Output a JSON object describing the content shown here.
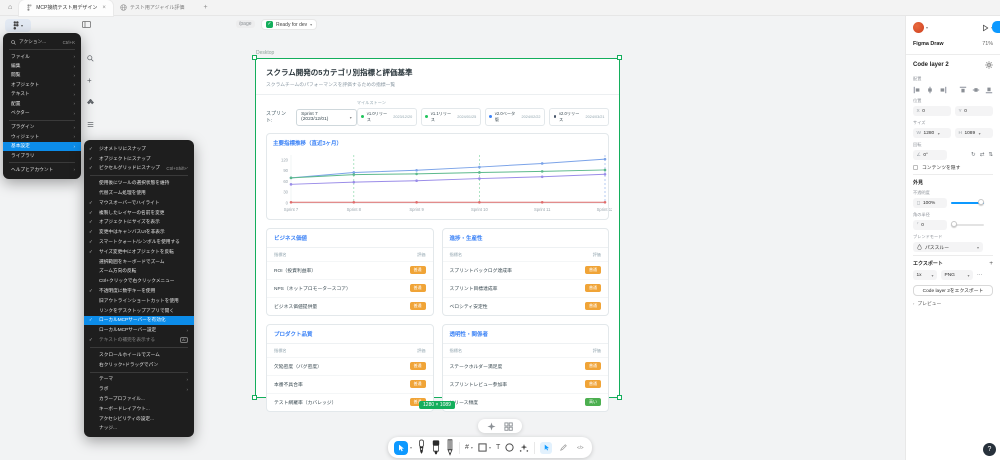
{
  "icons": {
    "chevron-down": "▾",
    "chevron-right": "›",
    "check": "✓",
    "close": "×",
    "plus": "+",
    "home": "⌂",
    "more": "⋯",
    "question": "?",
    "text-tool": "T",
    "frame-tool": "#",
    "dev-mode": "</>",
    "rotate": "↻",
    "flip-h": "⇄",
    "flip-v": "⇅",
    "angle": "∠"
  },
  "tabbar": {
    "tabs": [
      {
        "label": "MCP接続テスト用デザイン",
        "active": true
      },
      {
        "label": "テスト用アジャイル評価",
        "active": false
      }
    ]
  },
  "topbar": {
    "breadcrumb": "/page",
    "status": "Ready for dev"
  },
  "main_menu": {
    "action_item": {
      "label": "アクション...",
      "shortcut": "Ctrl+K"
    },
    "items": [
      {
        "label": "ファイル",
        "arrow": true
      },
      {
        "label": "編集",
        "arrow": true
      },
      {
        "label": "閲覧",
        "arrow": true
      },
      {
        "label": "オブジェクト",
        "arrow": true
      },
      {
        "label": "テキスト",
        "arrow": true
      },
      {
        "label": "配置",
        "arrow": true
      },
      {
        "label": "ベクター",
        "arrow": true,
        "divider_after": true
      },
      {
        "label": "プラグイン",
        "arrow": true
      },
      {
        "label": "ウィジェット",
        "arrow": true
      },
      {
        "label": "基本設定",
        "arrow": true,
        "highlighted": true
      },
      {
        "label": "ライブラリ",
        "divider_after": true
      },
      {
        "label": "ヘルプとアカウント",
        "arrow": true
      }
    ]
  },
  "settings_submenu": {
    "items": [
      {
        "label": "ジオメトリにスナップ",
        "checked": true
      },
      {
        "label": "オブジェクトにスナップ",
        "checked": true
      },
      {
        "label": "ピクセルグリッドにスナップ",
        "checked": true,
        "shortcut": "Ctrl+Shift+'",
        "divider_after": true
      },
      {
        "label": "使用後にツールの選択状態を維持"
      },
      {
        "label": "代替ズーム処理を使用"
      },
      {
        "label": "マウスオーバーでハイライト",
        "checked": true
      },
      {
        "label": "複製したレイヤーの名前を変更",
        "checked": true
      },
      {
        "label": "オブジェクトにサイズを表示",
        "checked": true
      },
      {
        "label": "変更中はキャンバスUIを非表示",
        "checked": true
      },
      {
        "label": "スマートクォート/シンボルを使用する",
        "checked": true
      },
      {
        "label": "サイズ変更中にオブジェクトを反転",
        "checked": true
      },
      {
        "label": "選択範囲をキーボードでズーム"
      },
      {
        "label": "ズーム方向の反転"
      },
      {
        "label": "Ctrl+クリックで右クリックメニュー"
      },
      {
        "label": "不透明度に数字キーを使用",
        "checked": true
      },
      {
        "label": "旧アウトラインショートカットを使用"
      },
      {
        "label": "リンクをデスクトップアプリで開く"
      },
      {
        "label": "ローカルMCPサーバーを有効化",
        "checked": true,
        "highlighted": true
      },
      {
        "label": "ローカルMCPサーバー設定",
        "arrow": true
      },
      {
        "label": "テキストの補完を表示する",
        "checked": true,
        "disabled": true,
        "badge": "AI",
        "divider_after": true
      },
      {
        "label": "スクロールホイールでズーム"
      },
      {
        "label": "右クリック+ドラッグでパン",
        "divider_after": true
      },
      {
        "label": "テーマ",
        "arrow": true
      },
      {
        "label": "ラボ",
        "arrow": true
      },
      {
        "label": "カラープロファイル..."
      },
      {
        "label": "キーボードレイアウト..."
      },
      {
        "label": "アクセシビリティの設定..."
      },
      {
        "label": "ナッジ..."
      }
    ]
  },
  "canvas": {
    "frame_label": "Desktop",
    "size_badge": "1280 × 1089"
  },
  "document": {
    "title": "スクラム開発の5カテゴリ別指標と評価基準",
    "subtitle": "スクラムチームのパフォーマンスを評価するための指標一覧",
    "sprint_label": "スプリント:",
    "sprint_value": "Sprint 7 (2023/12/01)",
    "milestones_label": "マイルストーン",
    "milestones": [
      {
        "name": "v1.0リリース",
        "date": "2023/12/20",
        "color": "#22c55e"
      },
      {
        "name": "v1.1リリース",
        "date": "2024/01/25",
        "color": "#22c55e"
      },
      {
        "name": "v2.0ベータ版",
        "date": "2024/02/22",
        "color": "#3b82f6"
      },
      {
        "name": "v2.0リリース",
        "date": "2024/03/21",
        "color": "#475569"
      }
    ],
    "table_headers": {
      "name": "指標名",
      "rating": "評価"
    },
    "cards": [
      {
        "title": "ビジネス価値",
        "rows": [
          {
            "name": "ROI（投資利益率）",
            "rating": "普通",
            "level": "mid"
          },
          {
            "name": "NPS（ネットプロモータースコア）",
            "rating": "普通",
            "level": "mid"
          },
          {
            "name": "ビジネス価値提供量",
            "rating": "普通",
            "level": "mid"
          }
        ]
      },
      {
        "title": "進捗・生産性",
        "rows": [
          {
            "name": "スプリントバックログ達成率",
            "rating": "普通",
            "level": "mid"
          },
          {
            "name": "スプリント目標達成率",
            "rating": "普通",
            "level": "mid"
          },
          {
            "name": "ベロシティ安定性",
            "rating": "普通",
            "level": "mid"
          }
        ]
      },
      {
        "title": "プロダクト品質",
        "rows": [
          {
            "name": "欠陥密度（バグ密度）",
            "rating": "普通",
            "level": "mid"
          },
          {
            "name": "本番不具合率",
            "rating": "普通",
            "level": "mid"
          },
          {
            "name": "テスト網羅率（カバレッジ）",
            "rating": "普通",
            "level": "mid"
          }
        ]
      },
      {
        "title": "透明性・関係者",
        "rows": [
          {
            "name": "ステークホルダー満足度",
            "rating": "普通",
            "level": "mid"
          },
          {
            "name": "スプリントレビュー参加率",
            "rating": "普通",
            "level": "mid"
          },
          {
            "name": "リリース頻度",
            "rating": "高い",
            "level": "high"
          }
        ]
      }
    ]
  },
  "chart_data": {
    "type": "line",
    "title": "主要指標推移（直近3ヶ月）",
    "x": [
      "Sprint 7",
      "Sprint 8",
      "Sprint 9",
      "Sprint 10",
      "Sprint 11",
      "Sprint 12"
    ],
    "yticks": [
      0,
      30,
      60,
      90,
      120
    ],
    "ylim": [
      0,
      128
    ],
    "grid": false,
    "legend": false,
    "series": [
      {
        "name": "blue",
        "color": "#7ba3e8",
        "values": [
          70,
          85,
          91,
          100,
          110,
          122
        ]
      },
      {
        "name": "green",
        "color": "#5cb98c",
        "values": [
          70,
          79,
          81,
          85,
          88,
          92
        ]
      },
      {
        "name": "purple",
        "color": "#9a8ce8",
        "values": [
          52,
          58,
          62,
          68,
          73,
          80
        ]
      },
      {
        "name": "red",
        "color": "#e06c6c",
        "values": [
          2,
          2,
          2,
          2,
          2,
          2
        ]
      }
    ],
    "milestone_lines": [
      {
        "index": 1,
        "color": "#6fcf97"
      },
      {
        "index": 3,
        "color": "#6fcf97"
      },
      {
        "index": 5,
        "color": "#7ba3e8"
      }
    ]
  },
  "right_panel": {
    "app_name": "Figma Draw",
    "zoom": "71%",
    "share": "共有",
    "layer_name": "Code layer 2",
    "align_label": "配置",
    "position": {
      "label": "位置",
      "x_label": "X",
      "x": "0",
      "y_label": "Y",
      "y": "0"
    },
    "size": {
      "label": "サイズ",
      "w_label": "W",
      "w": "1280",
      "h_label": "H",
      "h": "1089"
    },
    "rotation": {
      "label": "回転",
      "value": "0°"
    },
    "clip_label": "コンテンツを隠す",
    "appearance": {
      "label": "外見",
      "opacity_label": "不透明度",
      "opacity": "100%",
      "radius_label": "角の半径",
      "radius": "0",
      "blend_label": "ブレンドモード",
      "blend": "パススルー"
    },
    "export": {
      "label": "エクスポート",
      "scale": "1x",
      "format": "PNG",
      "button": "Code layer 2をエクスポート",
      "preview": "プレビュー"
    }
  },
  "colors": {
    "accent": "#0d99ff",
    "selection_green": "#14ae5c",
    "badge_mid": "#f0a437",
    "badge_high": "#4caf50",
    "card_title_blue": "#3b82f6"
  }
}
